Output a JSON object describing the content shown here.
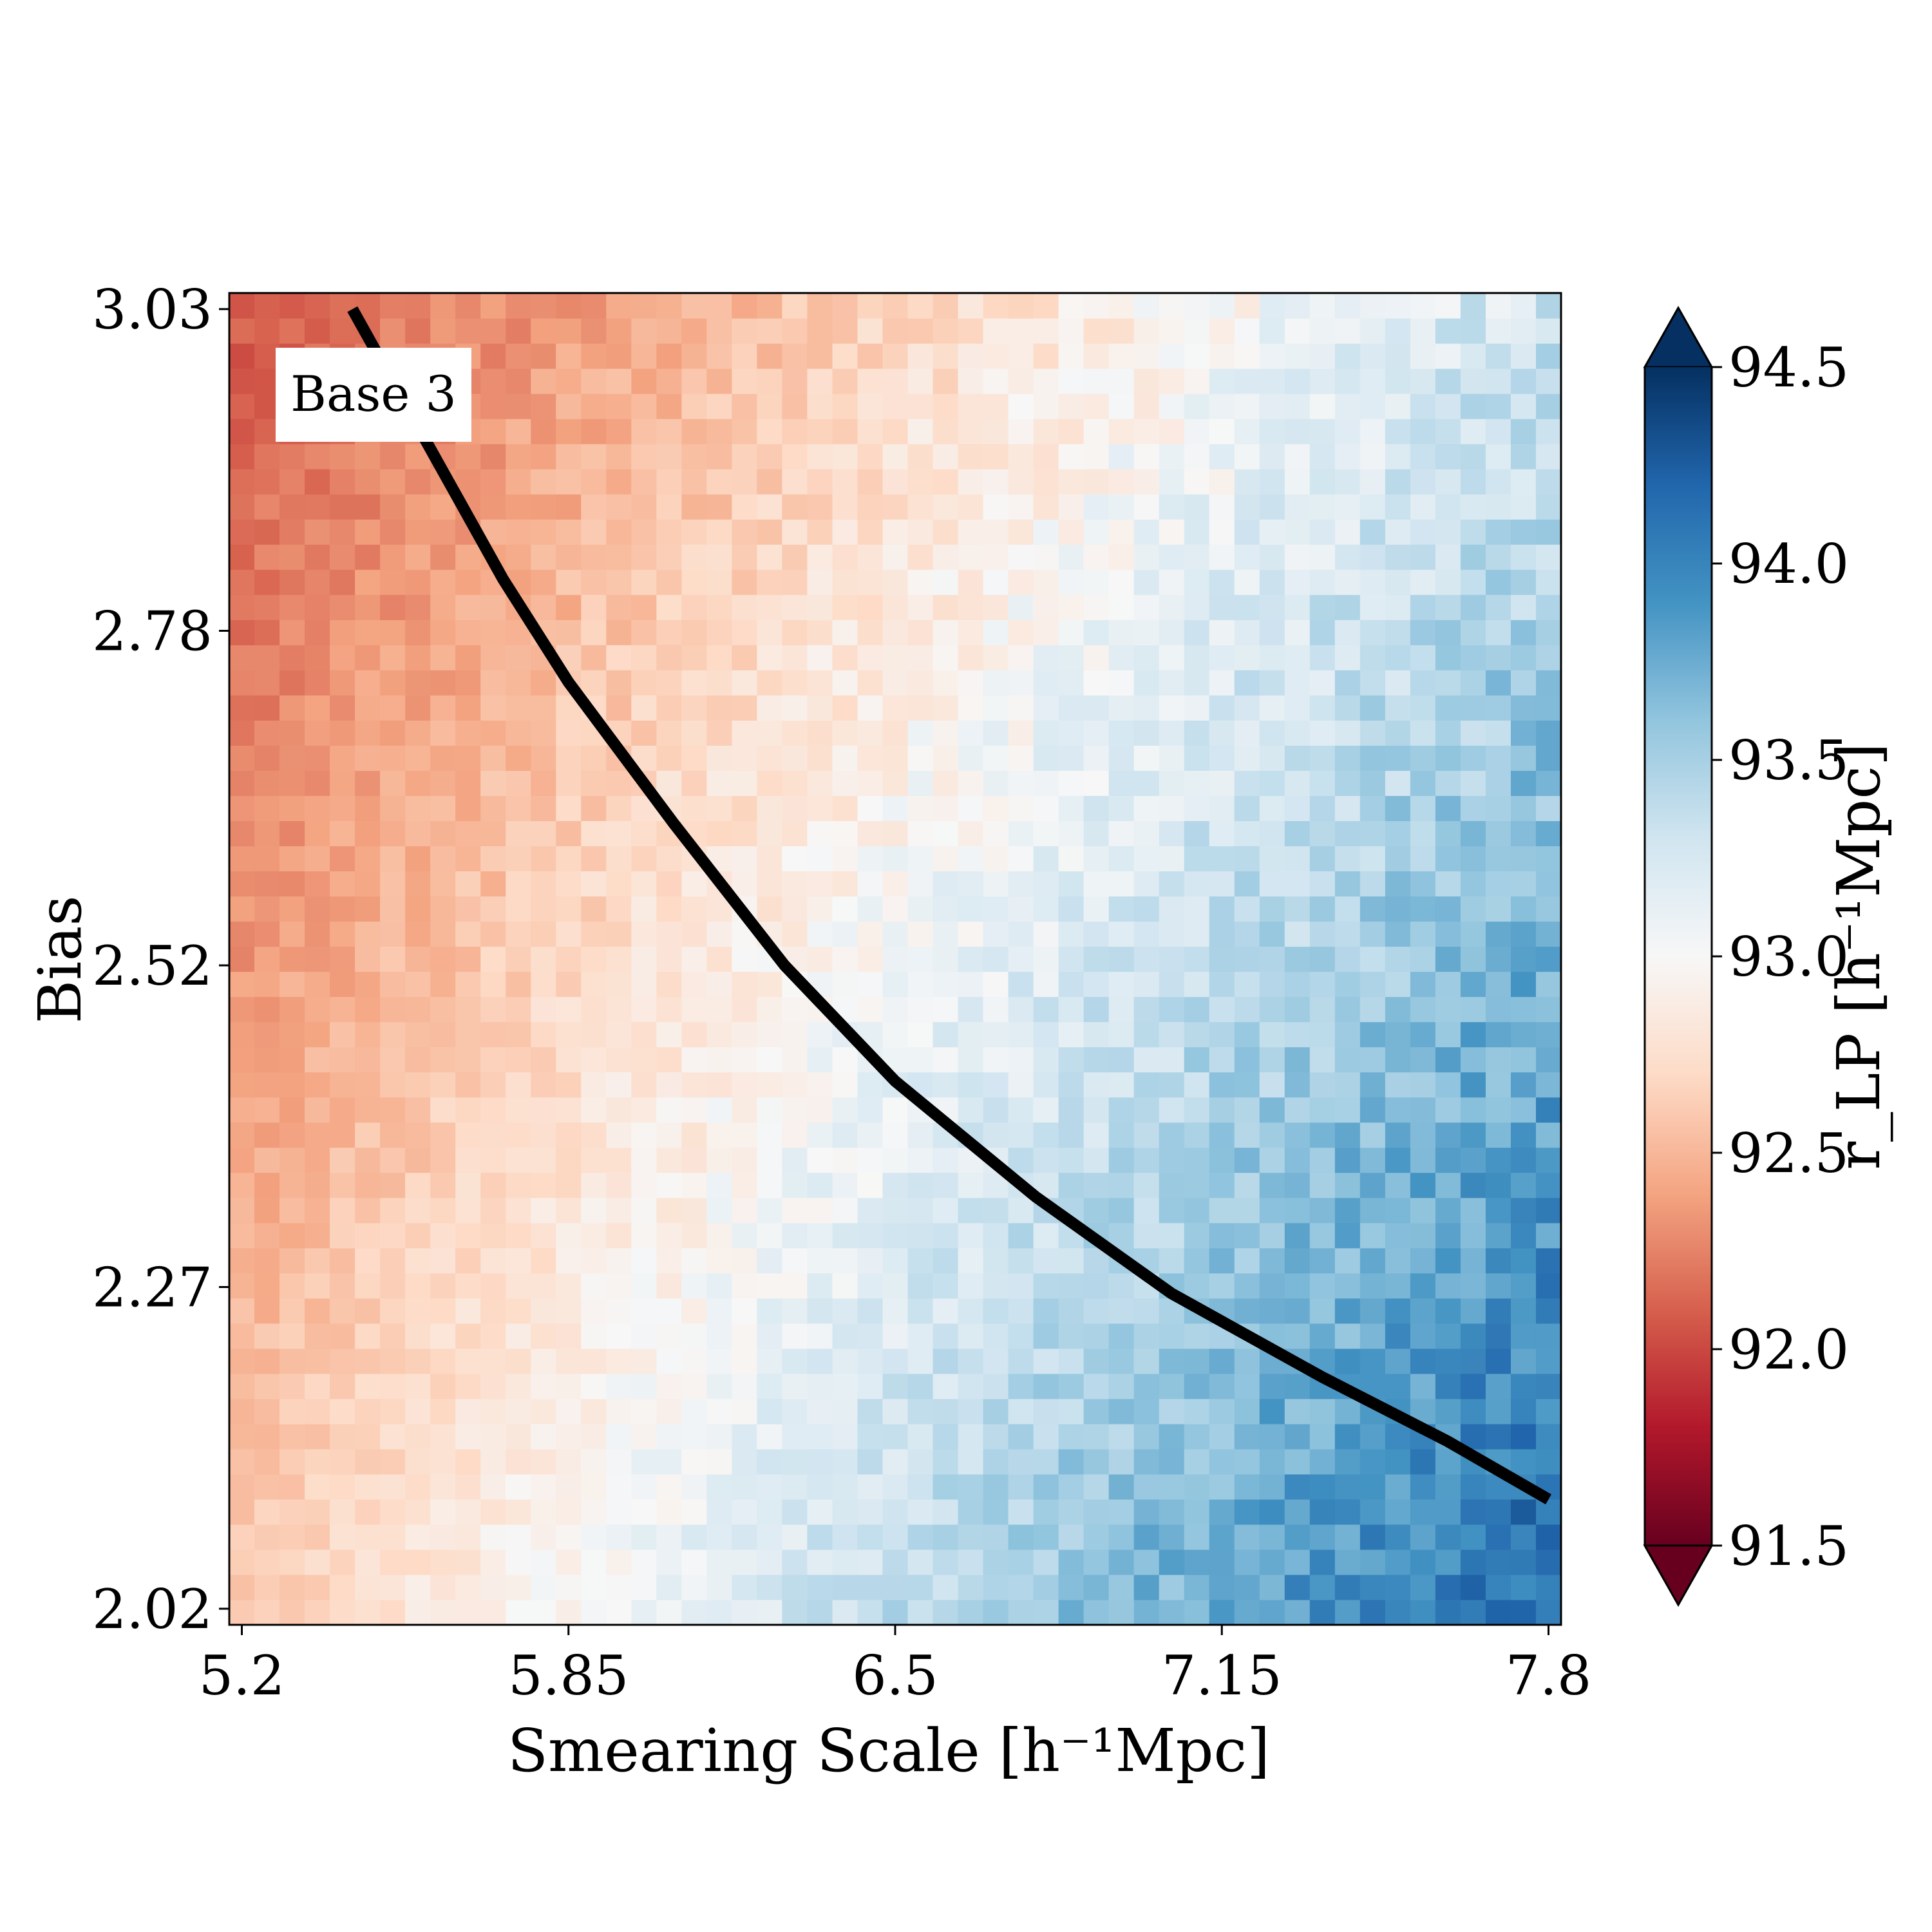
{
  "chart_data": {
    "type": "heatmap",
    "title": "",
    "xlabel": "Smearing Scale [h⁻¹Mpc]",
    "ylabel": "Bias",
    "xlim": [
      5.175,
      7.825
    ],
    "ylim": [
      2.0075,
      3.0425
    ],
    "x_ticks": [
      "5.2",
      "5.85",
      "6.5",
      "7.15",
      "7.8"
    ],
    "y_ticks": [
      "2.02",
      "2.27",
      "2.52",
      "2.78",
      "3.03"
    ],
    "grid": false,
    "annotation": "Base 3",
    "colorbar": {
      "label": "r_LP [h⁻¹Mpc]",
      "min": 91.5,
      "max": 94.5,
      "ticks": [
        "91.5",
        "92.0",
        "92.5",
        "93.0",
        "93.5",
        "94.0",
        "94.5"
      ],
      "colormap": "RdBu",
      "extend": "both"
    },
    "grid_size": {
      "nx": 53,
      "ny": 53
    },
    "surface_approx": {
      "corners": {
        "bottom_left": 92.6,
        "top_left": 92.05,
        "bottom_right": 94.2,
        "top_right": 93.3
      }
    },
    "contour": {
      "level": 93.0,
      "x": [
        5.42,
        5.52,
        5.62,
        5.72,
        5.85,
        6.06,
        6.28,
        6.5,
        6.78,
        7.05,
        7.35,
        7.6,
        7.8
      ],
      "y": [
        3.03,
        2.96,
        2.89,
        2.82,
        2.74,
        2.63,
        2.52,
        2.43,
        2.34,
        2.265,
        2.2,
        2.15,
        2.105
      ]
    }
  },
  "colors": {
    "contour": "#000000",
    "annotation_bg": "#ffffff"
  }
}
